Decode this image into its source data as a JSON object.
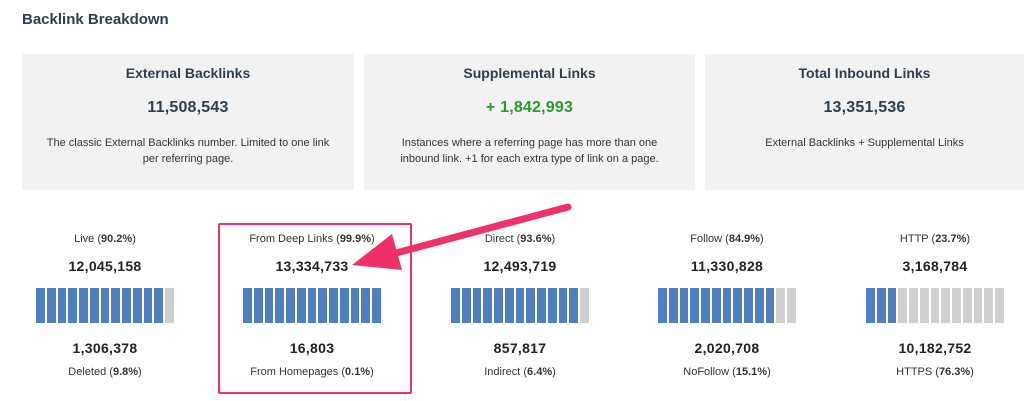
{
  "heading": "Backlink Breakdown",
  "cards": [
    {
      "title": "External Backlinks",
      "value": "11,508,543",
      "desc": "The classic External Backlinks number. Limited to one link per referring page."
    },
    {
      "title": "Supplemental Links",
      "value": "+ 1,842,993",
      "desc": "Instances where a referring page has more than one inbound link. +1 for each extra type of link on a page."
    },
    {
      "title": "Total Inbound Links",
      "value": "13,351,536",
      "desc": "External Backlinks + Supplemental Links"
    }
  ],
  "metrics": [
    {
      "top_label": "Live",
      "top_pct": "90.2%",
      "top_value": "12,045,158",
      "bottom_value": "1,306,378",
      "bottom_label": "Deleted",
      "bottom_pct": "9.8%",
      "fill": 0.902
    },
    {
      "top_label": "From Deep Links",
      "top_pct": "99.9%",
      "top_value": "13,334,733",
      "bottom_value": "16,803",
      "bottom_label": "From Homepages",
      "bottom_pct": "0.1%",
      "fill": 0.999
    },
    {
      "top_label": "Direct",
      "top_pct": "93.6%",
      "top_value": "12,493,719",
      "bottom_value": "857,817",
      "bottom_label": "Indirect",
      "bottom_pct": "6.4%",
      "fill": 0.936
    },
    {
      "top_label": "Follow",
      "top_pct": "84.9%",
      "top_value": "11,330,828",
      "bottom_value": "2,020,708",
      "bottom_label": "NoFollow",
      "bottom_pct": "15.1%",
      "fill": 0.849
    },
    {
      "top_label": "HTTP",
      "top_pct": "23.7%",
      "top_value": "3,168,784",
      "bottom_value": "10,182,752",
      "bottom_label": "HTTPS",
      "bottom_pct": "76.3%",
      "fill": 0.237
    }
  ],
  "colors": {
    "bar_fill": "#4f7fbe",
    "bar_empty": "#cfcfcf",
    "highlight": "#f0306a",
    "green": "#2a9a2a"
  }
}
